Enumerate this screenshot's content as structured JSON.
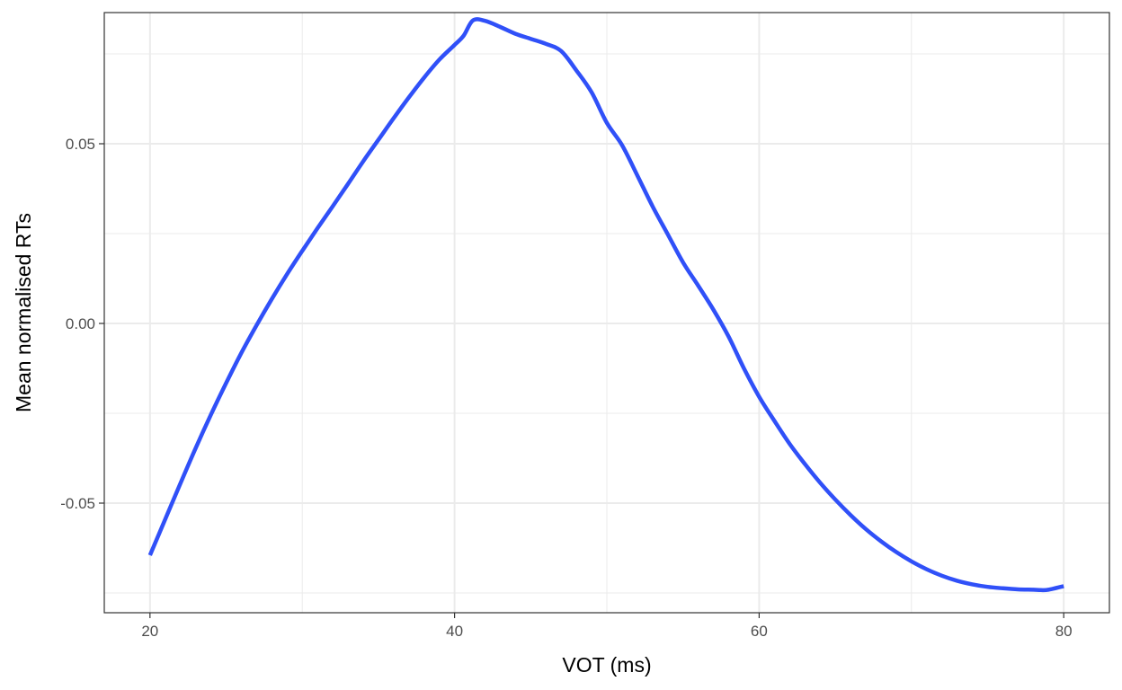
{
  "chart_data": {
    "type": "line",
    "xlabel": "VOT (ms)",
    "ylabel": "Mean normalised RTs",
    "xlim": [
      17.0,
      83.0
    ],
    "ylim": [
      -0.0805,
      0.0865
    ],
    "grid": true,
    "x_ticks": [
      20,
      40,
      60,
      80
    ],
    "x_tick_labels": [
      "20",
      "40",
      "60",
      "80"
    ],
    "x_minor_ticks": [
      30,
      50,
      70
    ],
    "y_ticks": [
      -0.05,
      0.0,
      0.05
    ],
    "y_tick_labels": [
      "-0.05",
      "0.00",
      "0.05"
    ],
    "y_minor_ticks": [
      -0.075,
      -0.025,
      0.025,
      0.075
    ],
    "series": [
      {
        "color": "#3050f8",
        "x": [
          20,
          21,
          22,
          23,
          24,
          25,
          26,
          27,
          28,
          29,
          30,
          31,
          32,
          33,
          34,
          35,
          36,
          37,
          38,
          39,
          40,
          40.6,
          41.2,
          42,
          43,
          44,
          45,
          46,
          47,
          48,
          49,
          50,
          51,
          52,
          53,
          54,
          55,
          56,
          57,
          58,
          59,
          60,
          61,
          62,
          63,
          64,
          65,
          66,
          67,
          68,
          69,
          70,
          71,
          72,
          73,
          74,
          75,
          76,
          77,
          78,
          78.5,
          79,
          80
        ],
        "y": [
          -0.0645,
          -0.0545,
          -0.0445,
          -0.0347,
          -0.0254,
          -0.0166,
          -0.0082,
          -0.0005,
          0.0068,
          0.0137,
          0.0202,
          0.0265,
          0.0326,
          0.0388,
          0.0451,
          0.0511,
          0.0571,
          0.0629,
          0.0684,
          0.0734,
          0.0775,
          0.0801,
          0.0843,
          0.0842,
          0.0825,
          0.0806,
          0.0792,
          0.0778,
          0.0758,
          0.0704,
          0.0643,
          0.0558,
          0.0496,
          0.0412,
          0.0326,
          0.0248,
          0.017,
          0.0105,
          0.0038,
          -0.0037,
          -0.0125,
          -0.0204,
          -0.0271,
          -0.0335,
          -0.0391,
          -0.0443,
          -0.049,
          -0.0533,
          -0.0572,
          -0.0606,
          -0.0636,
          -0.0662,
          -0.0684,
          -0.0702,
          -0.0716,
          -0.0726,
          -0.0733,
          -0.0737,
          -0.074,
          -0.0741,
          -0.0742,
          -0.0741,
          -0.0731
        ]
      }
    ]
  }
}
